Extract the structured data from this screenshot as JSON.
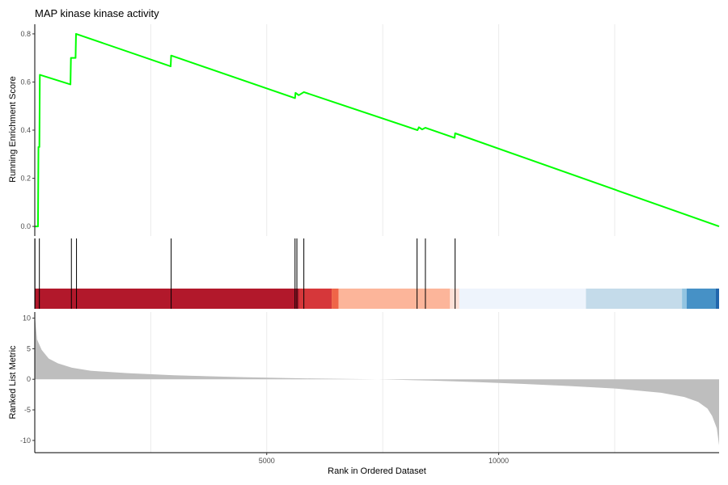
{
  "chart_data": {
    "type": "line",
    "title": "MAP kinase kinase activity",
    "xlabel": "Rank in Ordered Dataset",
    "xlim": [
      1,
      14750
    ],
    "x_ticks": [
      5000,
      10000
    ],
    "grid": true,
    "series": [
      {
        "panel": "running-enrichment",
        "ylabel": "Running Enrichment Score",
        "ylim": [
          -0.04,
          0.84
        ],
        "y_ticks": [
          0.0,
          0.2,
          0.4,
          0.6,
          0.8
        ],
        "color": "#00ff00",
        "points": [
          [
            1,
            0.0
          ],
          [
            70,
            0.0
          ],
          [
            80,
            0.33
          ],
          [
            100,
            0.33
          ],
          [
            110,
            0.63
          ],
          [
            770,
            0.59
          ],
          [
            780,
            0.7
          ],
          [
            880,
            0.7
          ],
          [
            890,
            0.8
          ],
          [
            2930,
            0.665
          ],
          [
            2940,
            0.71
          ],
          [
            5610,
            0.533
          ],
          [
            5620,
            0.555
          ],
          [
            5690,
            0.545
          ],
          [
            5800,
            0.558
          ],
          [
            8250,
            0.4
          ],
          [
            8280,
            0.412
          ],
          [
            8350,
            0.403
          ],
          [
            8420,
            0.41
          ],
          [
            9050,
            0.368
          ],
          [
            9060,
            0.387
          ],
          [
            14750,
            0.0
          ]
        ]
      },
      {
        "panel": "ranked-list-metric",
        "ylabel": "Ranked List Metric",
        "ylim": [
          -12,
          11
        ],
        "y_ticks": [
          -10,
          -5,
          0,
          5,
          10
        ],
        "color": "#bebebe",
        "points": [
          [
            1,
            10.5
          ],
          [
            50,
            6.5
          ],
          [
            150,
            4.8
          ],
          [
            300,
            3.4
          ],
          [
            500,
            2.6
          ],
          [
            800,
            1.9
          ],
          [
            1200,
            1.4
          ],
          [
            2000,
            1.0
          ],
          [
            3000,
            0.65
          ],
          [
            4500,
            0.35
          ],
          [
            6000,
            0.12
          ],
          [
            7400,
            0.0
          ],
          [
            8500,
            -0.2
          ],
          [
            9500,
            -0.45
          ],
          [
            10500,
            -0.75
          ],
          [
            11500,
            -1.1
          ],
          [
            12500,
            -1.5
          ],
          [
            13500,
            -2.2
          ],
          [
            14000,
            -2.9
          ],
          [
            14300,
            -3.7
          ],
          [
            14500,
            -4.8
          ],
          [
            14600,
            -6.0
          ],
          [
            14700,
            -8.0
          ],
          [
            14750,
            -10.8
          ]
        ]
      }
    ],
    "gene_hits": [
      5,
      100,
      790,
      900,
      2940,
      5610,
      5650,
      5800,
      8240,
      8420,
      9060
    ],
    "color_bands": [
      {
        "start": 1,
        "end": 5700,
        "color": "#b2182b"
      },
      {
        "start": 5700,
        "end": 6400,
        "color": "#d6373a"
      },
      {
        "start": 6400,
        "end": 6550,
        "color": "#ef6548"
      },
      {
        "start": 6550,
        "end": 8950,
        "color": "#fcb59a"
      },
      {
        "start": 8950,
        "end": 9150,
        "color": "#fde0d6"
      },
      {
        "start": 9150,
        "end": 11880,
        "color": "#eef4fc"
      },
      {
        "start": 11880,
        "end": 13950,
        "color": "#c4dbea"
      },
      {
        "start": 13950,
        "end": 14050,
        "color": "#92c4e1"
      },
      {
        "start": 14050,
        "end": 14680,
        "color": "#4691c6"
      },
      {
        "start": 14680,
        "end": 14750,
        "color": "#2166ac"
      }
    ]
  }
}
